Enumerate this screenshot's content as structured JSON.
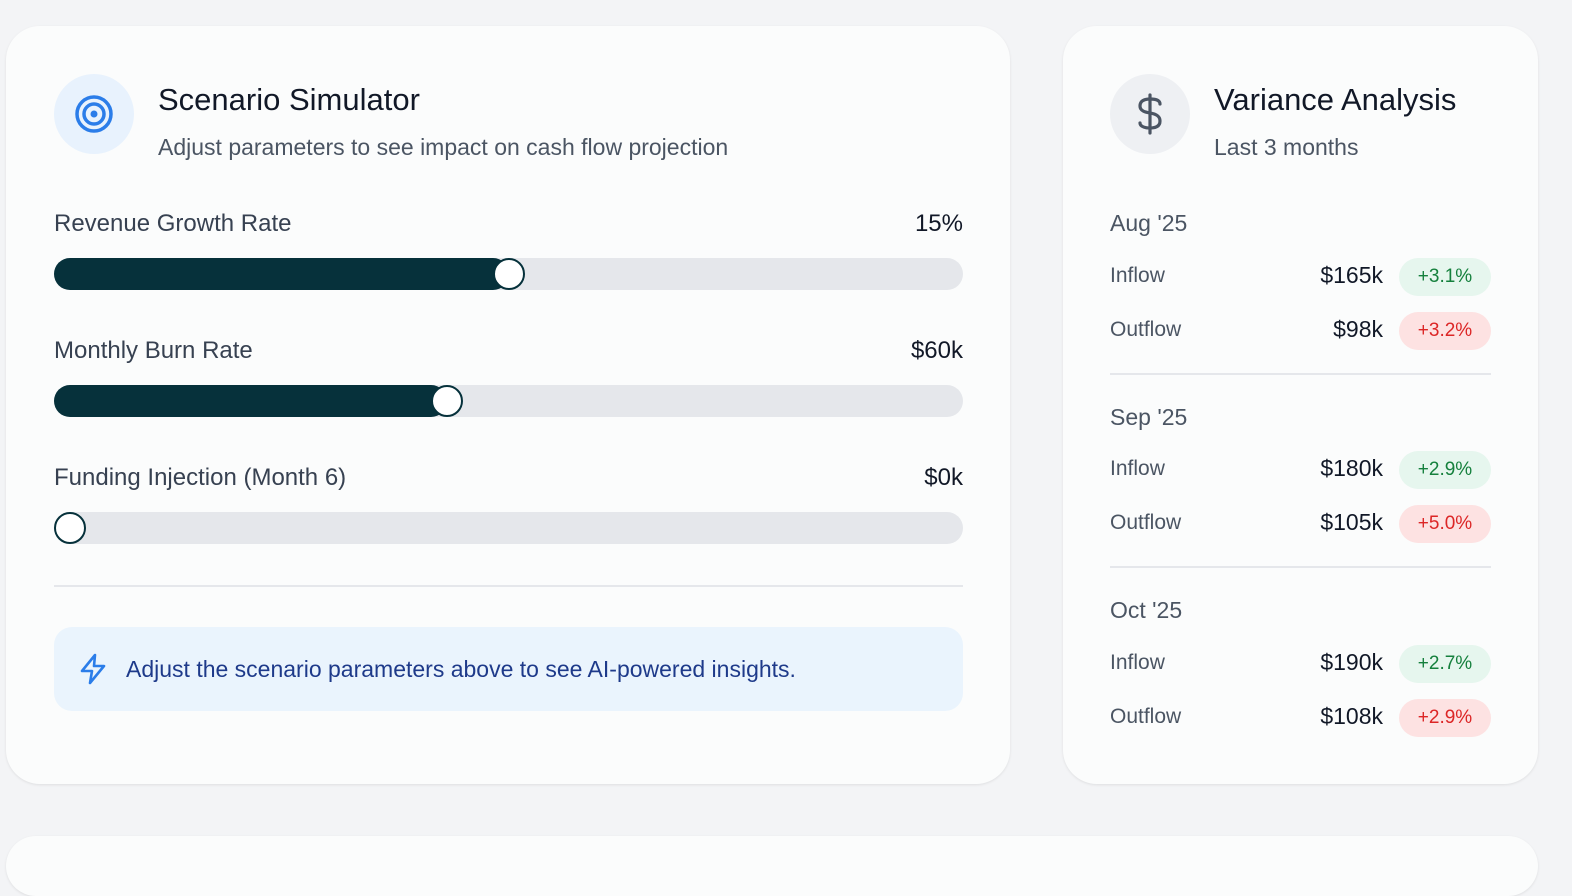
{
  "simulator": {
    "title": "Scenario Simulator",
    "subtitle": "Adjust parameters to see impact on cash flow projection",
    "params": [
      {
        "label": "Revenue Growth Rate",
        "value": "15%",
        "level": 0.5
      },
      {
        "label": "Monthly Burn Rate",
        "value": "$60k",
        "level": 0.432
      },
      {
        "label": "Funding Injection (Month 6)",
        "value": "$0k",
        "level": 0.0
      }
    ],
    "insight": "Adjust the scenario parameters above to see AI-powered insights.",
    "icon": "target-icon"
  },
  "variance": {
    "title": "Variance Analysis",
    "subtitle": "Last 3 months",
    "icon": "dollar-icon",
    "months": [
      {
        "label": "Aug '25",
        "rows": [
          {
            "label": "Inflow",
            "amount": "$165k",
            "change": "+3.1%",
            "kind": "pos"
          },
          {
            "label": "Outflow",
            "amount": "$98k",
            "change": "+3.2%",
            "kind": "neg"
          }
        ]
      },
      {
        "label": "Sep '25",
        "rows": [
          {
            "label": "Inflow",
            "amount": "$180k",
            "change": "+2.9%",
            "kind": "pos"
          },
          {
            "label": "Outflow",
            "amount": "$105k",
            "change": "+5.0%",
            "kind": "neg"
          }
        ]
      },
      {
        "label": "Oct '25",
        "rows": [
          {
            "label": "Inflow",
            "amount": "$190k",
            "change": "+2.7%",
            "kind": "pos"
          },
          {
            "label": "Outflow",
            "amount": "$108k",
            "change": "+2.9%",
            "kind": "neg"
          }
        ]
      }
    ]
  },
  "colors": {
    "slider_fill": "#06313b",
    "accent_blue": "#2b7de9",
    "positive": "#15803d",
    "negative": "#dc2626"
  }
}
